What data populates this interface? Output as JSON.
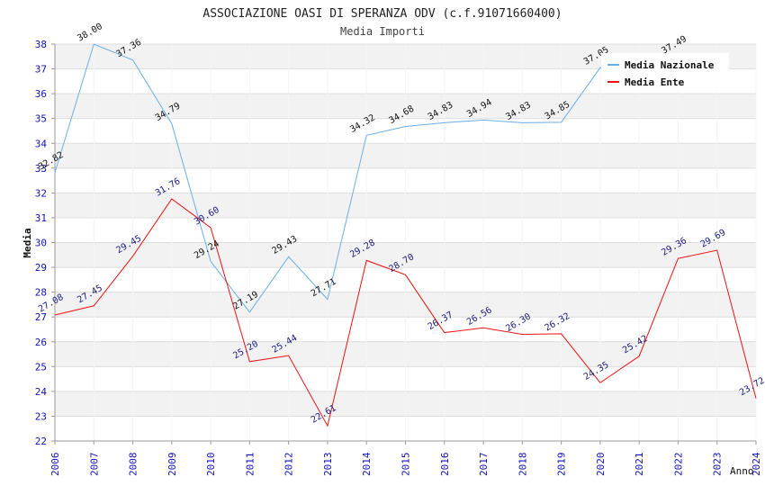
{
  "chart_data": {
    "type": "line",
    "title": "ASSOCIAZIONE OASI DI SPERANZA ODV (c.f.91071660400)",
    "subtitle": "Media Importi",
    "ylabel": "Media",
    "xlabel": "Anno",
    "ylim": [
      22,
      38
    ],
    "yticks": [
      22,
      23,
      24,
      25,
      26,
      27,
      28,
      29,
      30,
      31,
      32,
      33,
      34,
      35,
      36,
      37,
      38
    ],
    "x": [
      "2006",
      "2007",
      "2008",
      "2009",
      "2010",
      "2011",
      "2012",
      "2013",
      "2014",
      "2015",
      "2016",
      "2017",
      "2018",
      "2019",
      "2020",
      "2021",
      "2022",
      "2023",
      "2024"
    ],
    "series": [
      {
        "name": "Media Nazionale",
        "color": "#6aaee8",
        "values": [
          32.82,
          38.0,
          37.36,
          34.79,
          29.24,
          27.19,
          29.43,
          27.71,
          34.32,
          34.68,
          34.83,
          34.94,
          34.83,
          34.85,
          37.05,
          null,
          37.49,
          null,
          null
        ]
      },
      {
        "name": "Media Ente",
        "color": "#ee1111",
        "values": [
          27.08,
          27.45,
          29.45,
          31.76,
          30.6,
          25.2,
          25.44,
          22.61,
          29.28,
          28.7,
          26.37,
          26.56,
          26.3,
          26.32,
          24.35,
          25.42,
          29.36,
          29.69,
          23.72
        ]
      }
    ],
    "grid": true,
    "legend": "top-right"
  }
}
